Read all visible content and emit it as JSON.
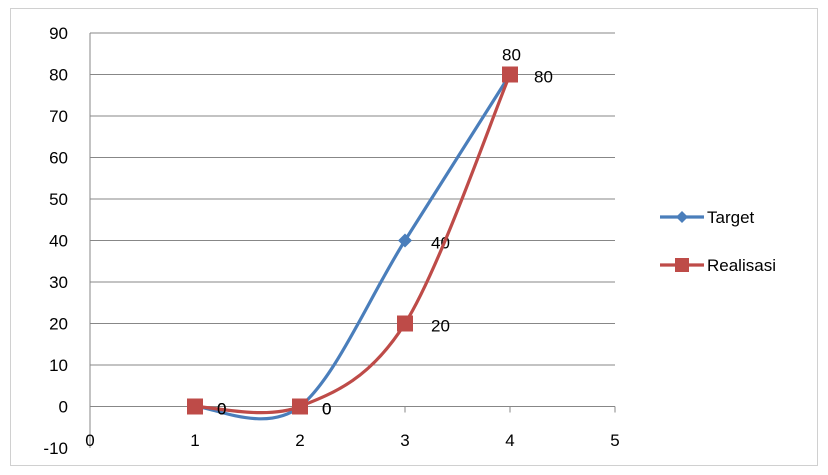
{
  "chart_data": {
    "type": "line",
    "title": "",
    "xlabel": "",
    "ylabel": "",
    "xlim": [
      0,
      5
    ],
    "ylim": [
      -10,
      90
    ],
    "x_ticks": [
      "0",
      "1",
      "2",
      "3",
      "4",
      "5"
    ],
    "y_ticks": [
      "-10",
      "0",
      "10",
      "20",
      "30",
      "40",
      "50",
      "60",
      "70",
      "80",
      "90"
    ],
    "grid": "horizontal",
    "smooth": true,
    "legend_position": "right",
    "series": [
      {
        "name": "Target",
        "color": "#4a7ebb",
        "marker": "diamond",
        "x": [
          1,
          2,
          3,
          4
        ],
        "y": [
          0,
          0,
          40,
          80
        ],
        "labels": [
          "0",
          "0",
          "40",
          "80"
        ]
      },
      {
        "name": "Realisasi",
        "color": "#be4b48",
        "marker": "square",
        "x": [
          1,
          2,
          3,
          4
        ],
        "y": [
          0,
          0,
          20,
          80
        ],
        "labels": [
          "0",
          "0",
          "20",
          "80"
        ]
      }
    ]
  }
}
